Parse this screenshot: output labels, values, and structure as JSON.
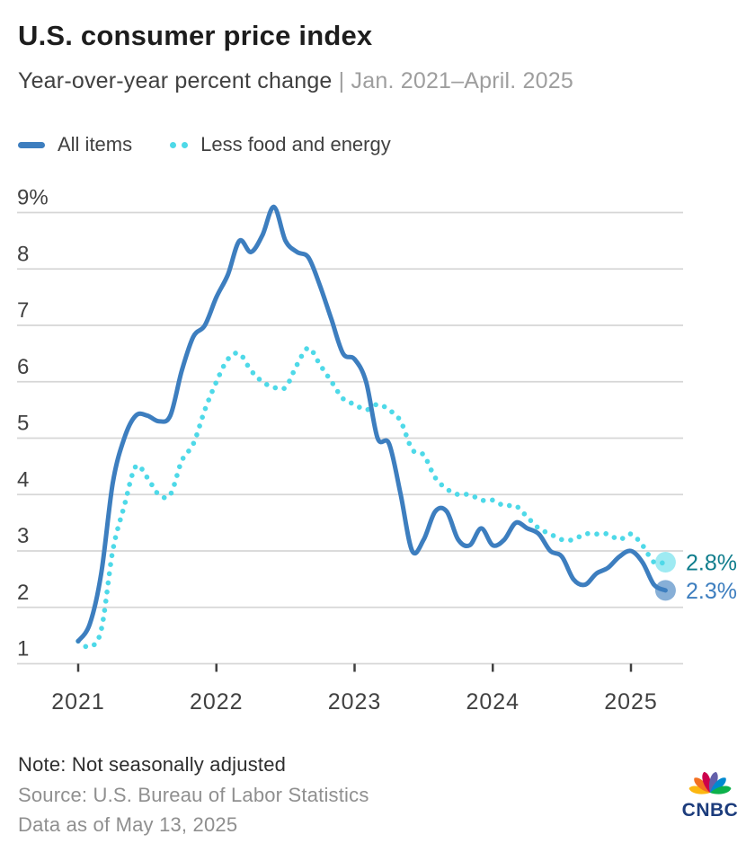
{
  "header": {
    "title": "U.S. consumer price index",
    "subtitle": "Year-over-year percent change",
    "subtitle_separator": " | ",
    "subtitle_range": "Jan. 2021–April. 2025"
  },
  "legend": {
    "items": [
      {
        "label": "All items",
        "swatch": "solid-line",
        "color": "#3d7ebf"
      },
      {
        "label": "Less food and energy",
        "swatch": "dotted-line",
        "color": "#4ed9e8"
      }
    ]
  },
  "chart_data": {
    "type": "line",
    "title": "U.S. consumer price index",
    "xlabel": "",
    "ylabel": "",
    "x_frequency": "monthly",
    "x_start": "Jan 2021",
    "x_end": "April 2025",
    "x_tick_labels": [
      "2021",
      "2022",
      "2023",
      "2024",
      "2025"
    ],
    "y_ticks": [
      1,
      2,
      3,
      4,
      5,
      6,
      7,
      8,
      9
    ],
    "y_top_tick_label": "9%",
    "ylim": [
      1,
      9.4
    ],
    "grid": "horizontal",
    "legend_position": "top-left",
    "series": [
      {
        "name": "All items",
        "style": "solid",
        "color": "#3d7ebf",
        "end_label": "2.3%",
        "end_label_color": "#3d7ebf",
        "values": [
          1.4,
          1.7,
          2.6,
          4.2,
          5.0,
          5.4,
          5.4,
          5.3,
          5.4,
          6.2,
          6.8,
          7.0,
          7.5,
          7.9,
          8.5,
          8.3,
          8.6,
          9.1,
          8.5,
          8.3,
          8.2,
          7.7,
          7.1,
          6.5,
          6.4,
          6.0,
          5.0,
          4.9,
          4.0,
          3.0,
          3.2,
          3.7,
          3.7,
          3.2,
          3.1,
          3.4,
          3.1,
          3.2,
          3.5,
          3.4,
          3.3,
          3.0,
          2.9,
          2.5,
          2.4,
          2.6,
          2.7,
          2.9,
          3.0,
          2.8,
          2.4,
          2.3
        ]
      },
      {
        "name": "Less food and energy",
        "style": "dotted",
        "color": "#4ed9e8",
        "end_label": "2.8%",
        "end_label_color": "#0f7d8c",
        "values": [
          1.4,
          1.3,
          1.6,
          3.0,
          3.8,
          4.5,
          4.3,
          4.0,
          4.0,
          4.6,
          4.9,
          5.5,
          6.0,
          6.4,
          6.5,
          6.2,
          6.0,
          5.9,
          5.9,
          6.3,
          6.6,
          6.3,
          6.0,
          5.7,
          5.6,
          5.5,
          5.6,
          5.5,
          5.3,
          4.8,
          4.7,
          4.3,
          4.1,
          4.0,
          4.0,
          3.9,
          3.9,
          3.8,
          3.8,
          3.6,
          3.4,
          3.3,
          3.2,
          3.2,
          3.3,
          3.3,
          3.3,
          3.2,
          3.3,
          3.1,
          2.8,
          2.8
        ]
      }
    ]
  },
  "footer": {
    "note": "Note: Not seasonally adjusted",
    "source": "Source: U.S. Bureau of Labor Statistics",
    "data_as_of": "Data as of May 13, 2025"
  },
  "logo": {
    "wordmark": "CNBC",
    "wordmark_color": "#1c3c7c",
    "feather_colors": [
      "#fcb711",
      "#f37021",
      "#cc004c",
      "#6460aa",
      "#0089d0",
      "#0db14b"
    ]
  },
  "colors": {
    "grid": "#d6d6d6",
    "tick": "#404040",
    "axis_text": "#414141",
    "title_text": "#1d1d1d",
    "subtitle_dark": "#404040",
    "subtitle_light": "#9e9e9e",
    "note_text": "#2e2e2e",
    "source_text": "#8f8f8f"
  }
}
